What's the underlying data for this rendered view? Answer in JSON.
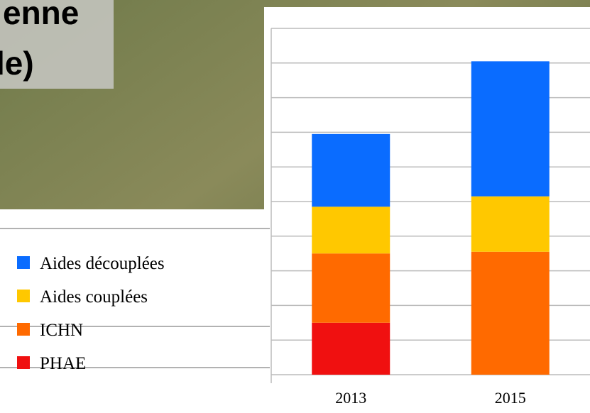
{
  "chart_data": {
    "type": "stacked_bar",
    "title_lines": [
      "enne",
      "le)"
    ],
    "categories": [
      "2013",
      "2015"
    ],
    "series": [
      {
        "name": "Aides découplées",
        "color": "#0a6cff",
        "values": [
          2.1,
          3.9
        ]
      },
      {
        "name": "Aides couplées",
        "color": "#ffc800",
        "values": [
          1.35,
          1.6
        ]
      },
      {
        "name": "ICHN",
        "color": "#ff6a00",
        "values": [
          2.0,
          3.55
        ]
      },
      {
        "name": "PHAE",
        "color": "#f01010",
        "values": [
          1.5,
          0
        ]
      }
    ],
    "ylim": [
      0,
      10
    ],
    "yticks": [
      0,
      1,
      2,
      3,
      4,
      5,
      6,
      7,
      8,
      9,
      10
    ],
    "grid": true
  }
}
